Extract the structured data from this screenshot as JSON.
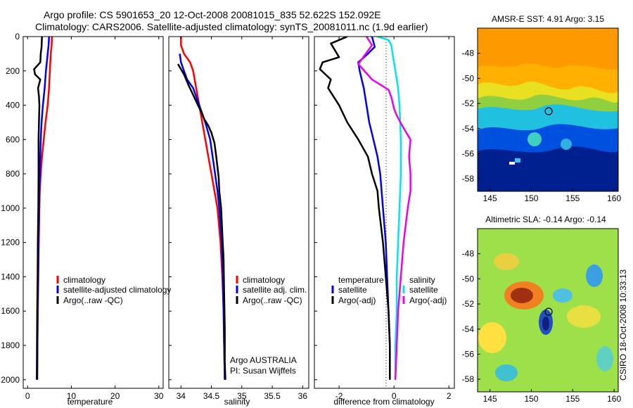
{
  "header": {
    "line1": "Argo profile: CS 5901653_20 12-Oct-2008 20081015_835 52.622S 152.092E",
    "line2": "Climatology: CARS2006. Satellite-adjusted climatology: synTS_20081011.nc (1.9d earlier)"
  },
  "colors": {
    "climatology": "#ff0000",
    "satellite": "#0000ee",
    "argo": "#000000",
    "satellite_salinity": "#00e5ee",
    "argo_salinity_diff": "#ee00ee"
  },
  "chart_data": [
    {
      "type": "line",
      "xlabel": "temperature",
      "ylabel": "",
      "xlim": [
        -1,
        31
      ],
      "ylim": [
        2050,
        0
      ],
      "xticks": [
        0,
        10,
        20,
        30
      ],
      "yticks": [
        0,
        200,
        400,
        600,
        800,
        1000,
        1200,
        1400,
        1600,
        1800,
        2000
      ],
      "legend": [
        "climatology",
        "satellite-adjusted climatology",
        "Argo(..raw -QC)"
      ],
      "series": [
        {
          "name": "climatology",
          "color": "#ff0000",
          "points": [
            [
              5.6,
              0
            ],
            [
              5.5,
              50
            ],
            [
              5.3,
              100
            ],
            [
              5.1,
              200
            ],
            [
              4.9,
              300
            ],
            [
              4.6,
              400
            ],
            [
              4.1,
              500
            ],
            [
              3.7,
              600
            ],
            [
              3.3,
              700
            ],
            [
              3.0,
              800
            ],
            [
              2.8,
              900
            ],
            [
              2.7,
              1000
            ],
            [
              2.55,
              1200
            ],
            [
              2.45,
              1400
            ],
            [
              2.35,
              1600
            ],
            [
              2.25,
              1800
            ],
            [
              2.2,
              2000
            ]
          ]
        },
        {
          "name": "satellite-adjusted climatology",
          "color": "#0000ee",
          "points": [
            [
              4.9,
              0
            ],
            [
              4.8,
              50
            ],
            [
              4.6,
              100
            ],
            [
              4.2,
              200
            ],
            [
              3.9,
              300
            ],
            [
              3.5,
              400
            ],
            [
              3.2,
              500
            ],
            [
              3.0,
              600
            ],
            [
              2.9,
              700
            ],
            [
              2.8,
              800
            ],
            [
              2.7,
              900
            ],
            [
              2.6,
              1000
            ],
            [
              2.5,
              1200
            ],
            [
              2.4,
              1400
            ],
            [
              2.3,
              1600
            ],
            [
              2.25,
              1800
            ],
            [
              2.2,
              2000
            ]
          ]
        },
        {
          "name": "Argo(..raw -QC)",
          "color": "#000000",
          "points": [
            [
              3.3,
              0
            ],
            [
              3.2,
              60
            ],
            [
              3.0,
              100
            ],
            [
              2.9,
              150
            ],
            [
              1.5,
              190
            ],
            [
              1.7,
              220
            ],
            [
              2.9,
              250
            ],
            [
              2.4,
              300
            ],
            [
              2.6,
              350
            ],
            [
              2.7,
              400
            ],
            [
              2.6,
              500
            ],
            [
              2.5,
              600
            ],
            [
              2.5,
              800
            ],
            [
              2.45,
              1000
            ],
            [
              2.35,
              1200
            ],
            [
              2.3,
              1400
            ],
            [
              2.2,
              1600
            ],
            [
              2.15,
              1800
            ],
            [
              2.1,
              2000
            ]
          ]
        }
      ]
    },
    {
      "type": "line",
      "xlabel": "salinity",
      "ylabel": "",
      "xlim": [
        33.8,
        36.1
      ],
      "ylim": [
        2050,
        0
      ],
      "xticks": [
        34,
        34.5,
        35,
        35.5,
        36
      ],
      "legend": [
        "climatology",
        "satellite adj. clim.",
        "Argo(..raw -QC)"
      ],
      "annotation": [
        "Argo AUSTRALIA",
        "PI: Susan Wijffels"
      ],
      "series": [
        {
          "name": "climatology",
          "color": "#ff0000",
          "points": [
            [
              34.0,
              0
            ],
            [
              34.0,
              50
            ],
            [
              34.05,
              100
            ],
            [
              34.15,
              150
            ],
            [
              34.2,
              200
            ],
            [
              34.25,
              300
            ],
            [
              34.3,
              400
            ],
            [
              34.35,
              500
            ],
            [
              34.4,
              600
            ],
            [
              34.45,
              700
            ],
            [
              34.5,
              800
            ],
            [
              34.55,
              900
            ],
            [
              34.6,
              1000
            ],
            [
              34.65,
              1200
            ],
            [
              34.68,
              1400
            ],
            [
              34.7,
              1600
            ],
            [
              34.71,
              1800
            ],
            [
              34.72,
              2000
            ]
          ]
        },
        {
          "name": "satellite adj. clim.",
          "color": "#0000ee",
          "points": [
            [
              33.98,
              100
            ],
            [
              34.0,
              150
            ],
            [
              34.05,
              200
            ],
            [
              34.1,
              250
            ],
            [
              34.2,
              300
            ],
            [
              34.3,
              400
            ],
            [
              34.4,
              500
            ],
            [
              34.48,
              600
            ],
            [
              34.52,
              700
            ],
            [
              34.56,
              800
            ],
            [
              34.6,
              900
            ],
            [
              34.63,
              1000
            ],
            [
              34.67,
              1200
            ],
            [
              34.69,
              1400
            ],
            [
              34.7,
              1600
            ],
            [
              34.71,
              1800
            ],
            [
              34.72,
              2000
            ]
          ]
        },
        {
          "name": "Argo(..raw -QC)",
          "color": "#000000",
          "points": [
            [
              33.95,
              160
            ],
            [
              34.05,
              220
            ],
            [
              34.12,
              280
            ],
            [
              34.2,
              340
            ],
            [
              34.28,
              400
            ],
            [
              34.35,
              450
            ],
            [
              34.38,
              480
            ],
            [
              34.45,
              520
            ],
            [
              34.5,
              560
            ],
            [
              34.55,
              620
            ],
            [
              34.58,
              700
            ],
            [
              34.6,
              760
            ],
            [
              34.62,
              820
            ],
            [
              34.63,
              900
            ],
            [
              34.66,
              1000
            ],
            [
              34.68,
              1150
            ],
            [
              34.7,
              1300
            ],
            [
              34.71,
              1500
            ],
            [
              34.72,
              1700
            ],
            [
              34.72,
              1900
            ],
            [
              34.73,
              2000
            ]
          ]
        }
      ]
    },
    {
      "type": "line",
      "xlabel": "difference from climatology",
      "ylabel": "",
      "xlim": [
        -2.9,
        2.2
      ],
      "ylim": [
        2050,
        0
      ],
      "xticks": [
        -2,
        0,
        2
      ],
      "legend_temperature": {
        "title": "temperature",
        "items": [
          "satellite",
          "Argo(-adj)"
        ]
      },
      "legend_salinity": {
        "title": "salinity",
        "items": [
          "satellite",
          "Argo(-adj)"
        ]
      },
      "series": [
        {
          "name": "temperature satellite",
          "color": "#0000ee",
          "points": [
            [
              -0.8,
              0
            ],
            [
              -0.7,
              60
            ],
            [
              -0.95,
              100
            ],
            [
              -1.3,
              150
            ],
            [
              -1.25,
              200
            ],
            [
              -1.1,
              300
            ],
            [
              -1.0,
              400
            ],
            [
              -0.9,
              500
            ],
            [
              -0.75,
              600
            ],
            [
              -0.6,
              700
            ],
            [
              -0.5,
              800
            ],
            [
              -0.4,
              1000
            ],
            [
              -0.3,
              1200
            ],
            [
              -0.25,
              1400
            ],
            [
              -0.2,
              1600
            ],
            [
              -0.15,
              1800
            ],
            [
              -0.15,
              2000
            ]
          ]
        },
        {
          "name": "temperature Argo(-adj)",
          "color": "#000000",
          "points": [
            [
              -1.7,
              0
            ],
            [
              -2.3,
              40
            ],
            [
              -2.0,
              120
            ],
            [
              -2.6,
              150
            ],
            [
              -2.7,
              190
            ],
            [
              -2.3,
              250
            ],
            [
              -2.4,
              300
            ],
            [
              -2.0,
              400
            ],
            [
              -1.7,
              500
            ],
            [
              -1.3,
              600
            ],
            [
              -0.95,
              700
            ],
            [
              -0.8,
              800
            ],
            [
              -0.6,
              900
            ],
            [
              -0.55,
              1000
            ],
            [
              -0.4,
              1200
            ],
            [
              -0.3,
              1400
            ],
            [
              -0.2,
              1600
            ],
            [
              -0.15,
              1800
            ],
            [
              -0.15,
              2000
            ]
          ]
        },
        {
          "name": "salinity satellite",
          "color": "#00e5ee",
          "points": [
            [
              -0.6,
              0
            ],
            [
              -0.2,
              20
            ],
            [
              -0.1,
              50
            ],
            [
              -0.05,
              100
            ],
            [
              0.0,
              150
            ],
            [
              0.05,
              200
            ],
            [
              0.1,
              250
            ],
            [
              0.15,
              300
            ],
            [
              0.2,
              400
            ],
            [
              0.25,
              600
            ],
            [
              0.25,
              800
            ],
            [
              0.2,
              1000
            ],
            [
              0.15,
              1200
            ],
            [
              0.1,
              1400
            ],
            [
              0.1,
              1600
            ],
            [
              0.05,
              1800
            ],
            [
              0.05,
              2000
            ]
          ]
        },
        {
          "name": "salinity Argo(-adj)",
          "color": "#ee00ee",
          "points": [
            [
              -1.0,
              0
            ],
            [
              -0.8,
              50
            ],
            [
              -1.3,
              160
            ],
            [
              -0.8,
              250
            ],
            [
              -0.2,
              310
            ],
            [
              -0.1,
              350
            ],
            [
              0.0,
              420
            ],
            [
              0.1,
              460
            ],
            [
              0.3,
              520
            ],
            [
              0.45,
              560
            ],
            [
              0.6,
              600
            ],
            [
              0.55,
              700
            ],
            [
              0.6,
              800
            ],
            [
              0.6,
              900
            ],
            [
              0.5,
              1000
            ],
            [
              0.35,
              1200
            ],
            [
              0.25,
              1400
            ],
            [
              0.15,
              1600
            ],
            [
              0.1,
              1800
            ],
            [
              0.05,
              2000
            ]
          ]
        }
      ]
    },
    {
      "type": "heatmap",
      "title": "AMSR-E SST: 4.91  Argo: 3.15",
      "xlim": [
        143.5,
        160.5
      ],
      "ylim": [
        -59,
        -46
      ],
      "xticks": [
        145,
        150,
        155,
        160
      ],
      "yticks": [
        -48,
        -50,
        -52,
        -54,
        -56,
        -58
      ],
      "marker": {
        "lon": 152.09,
        "lat": -52.62
      }
    },
    {
      "type": "heatmap",
      "title": "Altimetric SLA: -0.14  Argo: -0.14",
      "xlim": [
        143.5,
        160.5
      ],
      "ylim": [
        -59,
        -46
      ],
      "xticks": [
        145,
        150,
        155,
        160
      ],
      "yticks": [
        -48,
        -50,
        -52,
        -54,
        -56,
        -58
      ],
      "marker": {
        "lon": 152.09,
        "lat": -52.62
      }
    }
  ],
  "footer_vertical": "CSIRO 18-Oct-2008 10:33:13"
}
